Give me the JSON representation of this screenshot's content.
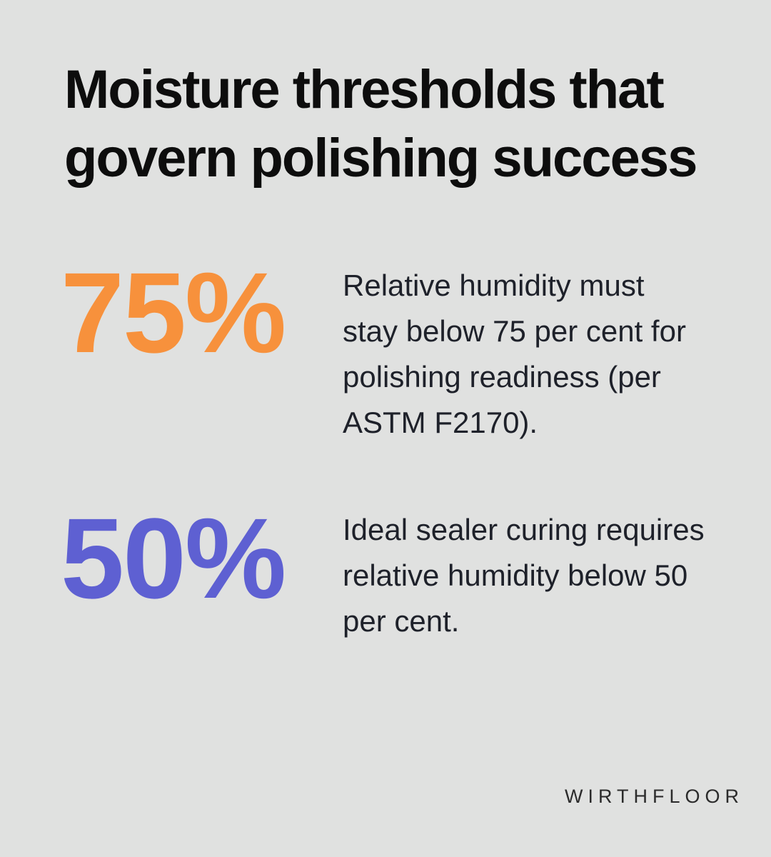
{
  "page": {
    "background": "#e0e1e0"
  },
  "title": {
    "full": "Moisture thresholds that govern polishing success",
    "lines": [
      "Moisture thresholds that",
      "govern polishing success"
    ]
  },
  "stats": [
    {
      "value": "75%",
      "color": "#f7913c",
      "description": "Relative humidity must stay below 75 per cent for polishing readiness (per ASTM F2170)."
    },
    {
      "value": "50%",
      "color": "#5e60d2",
      "description": "Ideal sealer curing requires relative humidity below 50 per cent."
    }
  ],
  "brand": "WIRTHFLOOR",
  "chart_data": {
    "type": "table",
    "title": "Moisture thresholds that govern polishing success",
    "categories": [
      "Relative humidity ceiling for polishing readiness (per ASTM F2170)",
      "Relative humidity ceiling for ideal sealer curing"
    ],
    "values": [
      75,
      50
    ],
    "unit": "%",
    "value_colors": [
      "#f7913c",
      "#5e60d2"
    ]
  }
}
